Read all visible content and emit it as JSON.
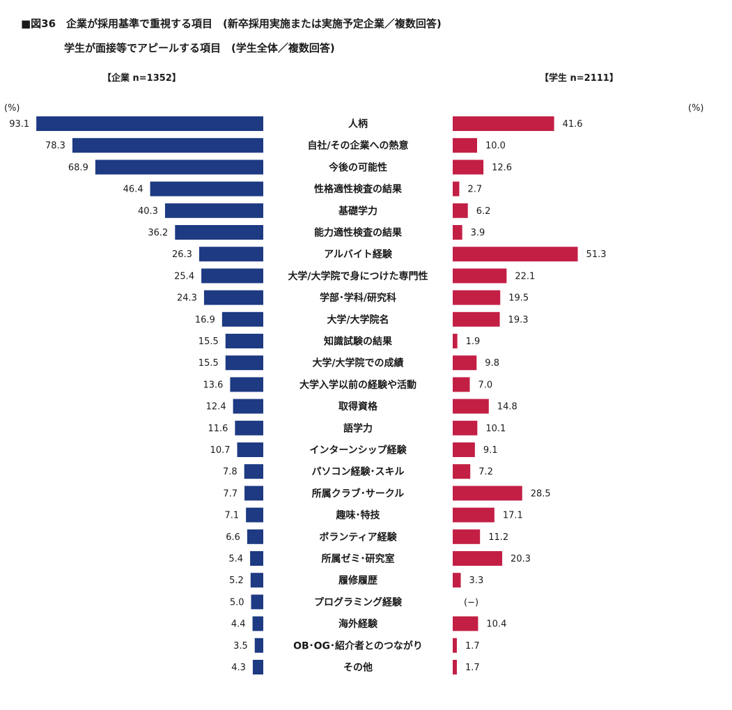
{
  "title": {
    "line1": "■図36　企業が採用基準で重視する項目　(新卒採用実施または実施予定企業／複数回答)",
    "line2": "学生が面接等でアピールする項目　(学生全体／複数回答)"
  },
  "legend": {
    "company": "【企業 n=1352】",
    "student": "【学生 n=2111】"
  },
  "unit_left": "(%)",
  "unit_right": "(%)",
  "colors": {
    "company": "#1d3a82",
    "student": "#c31f45"
  },
  "chart_data": {
    "type": "bar",
    "orientation": "horizontal-butterfly",
    "categories": [
      "人柄",
      "自社/その企業への熱意",
      "今後の可能性",
      "性格適性検査の結果",
      "基礎学力",
      "能力適性検査の結果",
      "アルバイト経験",
      "大学/大学院で身につけた専門性",
      "学部･学科/研究科",
      "大学/大学院名",
      "知識試験の結果",
      "大学/大学院での成績",
      "大学入学以前の経験や活動",
      "取得資格",
      "語学力",
      "インターンシップ経験",
      "パソコン経験･スキル",
      "所属クラブ･サークル",
      "趣味･特技",
      "ボランティア経験",
      "所属ゼミ･研究室",
      "履修履歴",
      "プログラミング経験",
      "海外経験",
      "OB･OG･紹介者とのつながり",
      "その他"
    ],
    "series": [
      {
        "name": "企業 n=1352",
        "values": [
          93.1,
          78.3,
          68.9,
          46.4,
          40.3,
          36.2,
          26.3,
          25.4,
          24.3,
          16.9,
          15.5,
          15.5,
          13.6,
          12.4,
          11.6,
          10.7,
          7.8,
          7.7,
          7.1,
          6.6,
          5.4,
          5.2,
          5.0,
          4.4,
          3.5,
          4.3
        ],
        "labels": [
          "93.1",
          "78.3",
          "68.9",
          "46.4",
          "40.3",
          "36.2",
          "26.3",
          "25.4",
          "24.3",
          "16.9",
          "15.5",
          "15.5",
          "13.6",
          "12.4",
          "11.6",
          "10.7",
          "7.8",
          "7.7",
          "7.1",
          "6.6",
          "5.4",
          "5.2",
          "5.0",
          "4.4",
          "3.5",
          "4.3"
        ]
      },
      {
        "name": "学生 n=2111",
        "values": [
          41.6,
          10.0,
          12.6,
          2.7,
          6.2,
          3.9,
          51.3,
          22.1,
          19.5,
          19.3,
          1.9,
          9.8,
          7.0,
          14.8,
          10.1,
          9.1,
          7.2,
          28.5,
          17.1,
          11.2,
          20.3,
          3.3,
          null,
          10.4,
          1.7,
          1.7
        ],
        "labels": [
          "41.6",
          "10.0",
          "12.6",
          "2.7",
          "6.2",
          "3.9",
          "51.3",
          "22.1",
          "19.5",
          "19.3",
          "1.9",
          "9.8",
          "7.0",
          "14.8",
          "10.1",
          "9.1",
          "7.2",
          "28.5",
          "17.1",
          "11.2",
          "20.3",
          "3.3",
          "(−)",
          "10.4",
          "1.7",
          "1.7"
        ]
      }
    ]
  }
}
